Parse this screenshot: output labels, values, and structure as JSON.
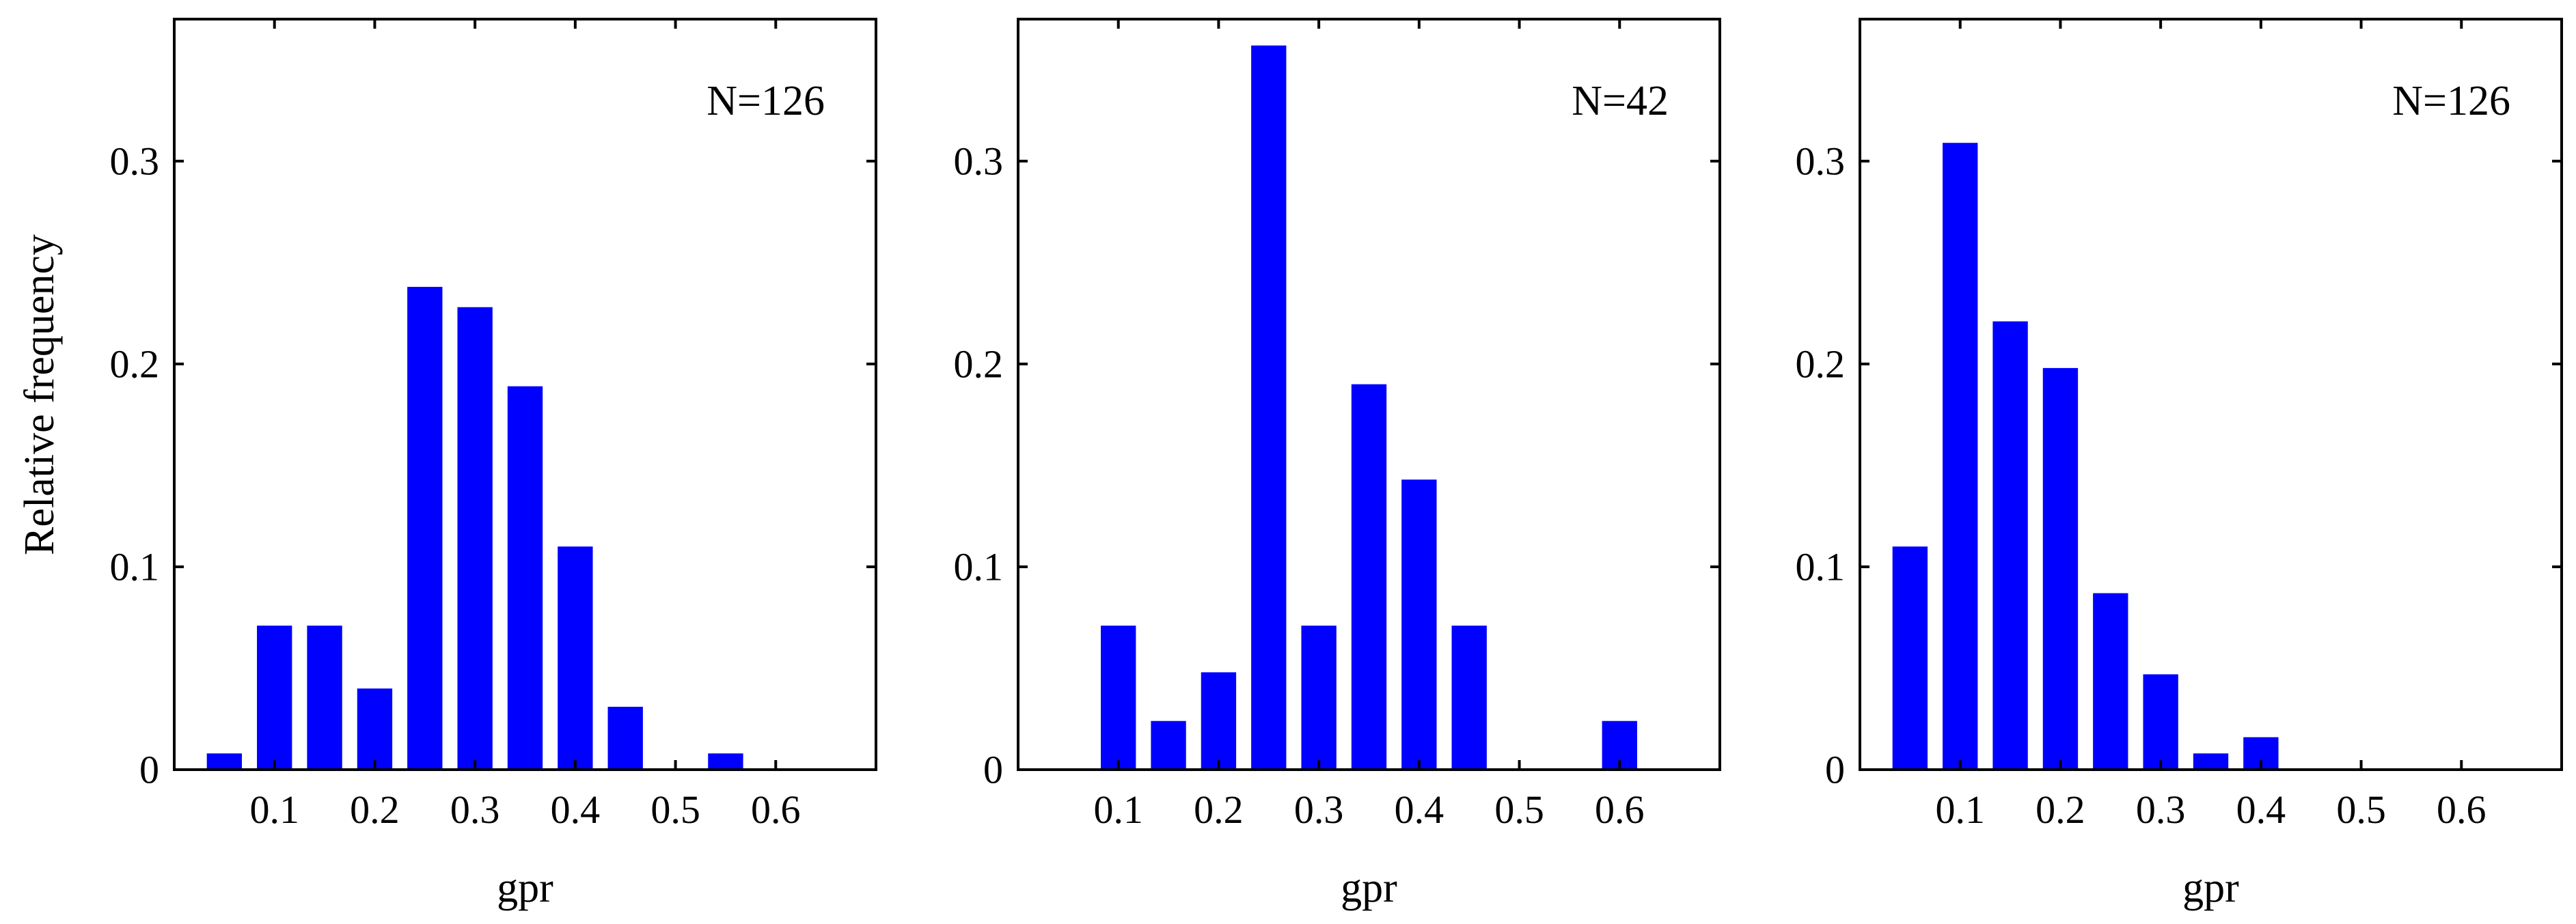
{
  "figure": {
    "ylabel": "Relative frequency"
  },
  "chart_data": [
    {
      "type": "bar",
      "annotation": "N=126",
      "xlabel": "gpr",
      "ylabel": "Relative frequency",
      "x": [
        0.05,
        0.1,
        0.15,
        0.2,
        0.25,
        0.3,
        0.35,
        0.4,
        0.45,
        0.5,
        0.55,
        0.6
      ],
      "values": [
        0.008,
        0.071,
        0.071,
        0.04,
        0.238,
        0.228,
        0.189,
        0.11,
        0.031,
        0.0,
        0.008,
        0.0
      ],
      "xlim": [
        0.0,
        0.7
      ],
      "ylim": [
        0,
        0.37
      ],
      "xticks": [
        "0.1",
        "0.2",
        "0.3",
        "0.4",
        "0.5",
        "0.6"
      ],
      "yticks": [
        "0",
        "0.1",
        "0.2",
        "0.3"
      ],
      "grid": false,
      "bar_color": "#0000ff"
    },
    {
      "type": "bar",
      "annotation": "N=42",
      "xlabel": "gpr",
      "x": [
        0.05,
        0.1,
        0.15,
        0.2,
        0.25,
        0.3,
        0.35,
        0.4,
        0.45,
        0.5,
        0.55,
        0.6
      ],
      "values": [
        0.0,
        0.071,
        0.024,
        0.048,
        0.357,
        0.071,
        0.19,
        0.143,
        0.071,
        0.0,
        0.0,
        0.024
      ],
      "xlim": [
        0.0,
        0.7
      ],
      "ylim": [
        0,
        0.37
      ],
      "xticks": [
        "0.1",
        "0.2",
        "0.3",
        "0.4",
        "0.5",
        "0.6"
      ],
      "yticks": [
        "0",
        "0.1",
        "0.2",
        "0.3"
      ],
      "grid": false,
      "bar_color": "#0000ff"
    },
    {
      "type": "bar",
      "annotation": "N=126",
      "xlabel": "gpr",
      "x": [
        0.05,
        0.1,
        0.15,
        0.2,
        0.25,
        0.3,
        0.35,
        0.4
      ],
      "values": [
        0.11,
        0.309,
        0.221,
        0.198,
        0.087,
        0.047,
        0.008,
        0.016
      ],
      "xlim": [
        0.0,
        0.7
      ],
      "ylim": [
        0,
        0.37
      ],
      "xticks": [
        "0.1",
        "0.2",
        "0.3",
        "0.4",
        "0.5",
        "0.6"
      ],
      "yticks": [
        "0",
        "0.1",
        "0.2",
        "0.3"
      ],
      "grid": false,
      "bar_color": "#0000ff"
    }
  ]
}
